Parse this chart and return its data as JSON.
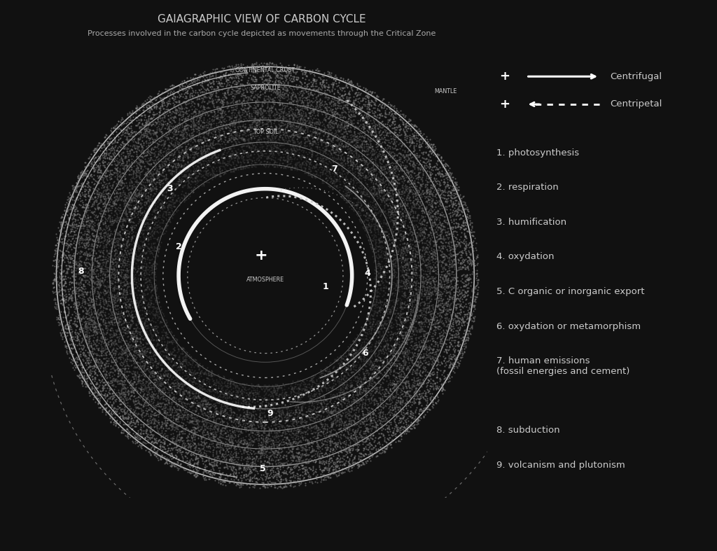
{
  "title": "GAIAGRAPHIC VIEW OF CARBON CYCLE",
  "subtitle": "Processes involved in the carbon cycle depicted as movements through the Critical Zone",
  "background_color": "#111111",
  "panel_bg": "#222222",
  "text_color": "#cccccc",
  "white": "#ffffff",
  "legend_items": [
    "1. photosynthesis",
    "2. respiration",
    "3. humification",
    "4. oxydation",
    "5. C organic or inorganic export",
    "6. oxydation or metamorphism",
    "7. human emissions\n(fossil energies and cement)",
    "8. subduction",
    "9. volcanism and plutonism"
  ]
}
